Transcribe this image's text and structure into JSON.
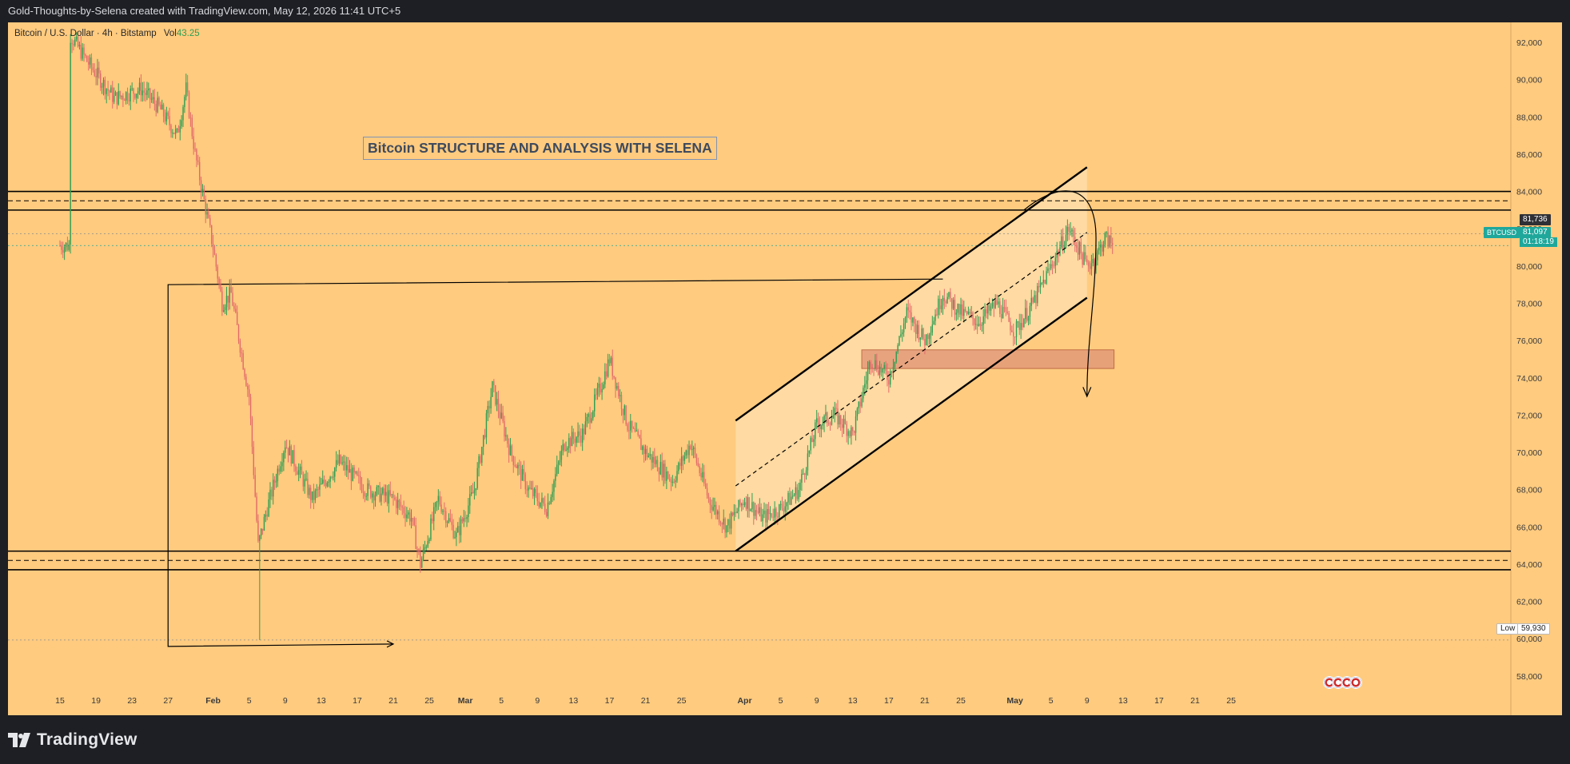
{
  "header": {
    "attribution": "Gold-Thoughts-by-Selena created with TradingView.com, May 12, 2026 11:41 UTC+5"
  },
  "legend": {
    "symbol": "Bitcoin / U.S. Dollar · 4h · Bitstamp",
    "vol_label": "Vol",
    "vol_value": "43.25"
  },
  "annotation_title": "Bitcoin STRUCTURE AND ANALYSIS WITH SELENA",
  "price_labels": {
    "high_marker": "81,736",
    "ticker": "BTCUSD",
    "current_price": "81,097",
    "countdown": "01:18:19",
    "low_label": "Low",
    "low_value": "59,930"
  },
  "footer": {
    "brand": "TradingView"
  },
  "colors": {
    "background": "#ffcb7f",
    "up_candle": "#2e9e52",
    "down_candle": "#e26a6a",
    "channel_fill": "#ffdba6",
    "demand_zone": "#e39a78",
    "lines": "#000000",
    "current_price": "#1fa79b"
  },
  "chart_data": {
    "type": "candlestick",
    "symbol": "BTCUSD",
    "timeframe": "4h",
    "exchange": "Bitstamp",
    "x_tick_labels": [
      "15",
      "19",
      "23",
      "27",
      "Feb",
      "5",
      "9",
      "13",
      "17",
      "21",
      "25",
      "Mar",
      "5",
      "9",
      "13",
      "17",
      "21",
      "25",
      "Apr",
      "5",
      "9",
      "13",
      "17",
      "21",
      "25",
      "May",
      "5",
      "9",
      "13",
      "17",
      "21",
      "25"
    ],
    "y_tick_labels": [
      "92,000",
      "90,000",
      "88,000",
      "86,000",
      "84,000",
      "82,000",
      "80,000",
      "78,000",
      "76,000",
      "74,000",
      "72,000",
      "70,000",
      "68,000",
      "66,000",
      "64,000",
      "62,000",
      "60,000",
      "58,000"
    ],
    "ylim": [
      57000,
      92600
    ],
    "price_path": [
      [
        "Jan 16",
        92500
      ],
      [
        "Jan 18",
        91000
      ],
      [
        "Jan 21",
        89000
      ],
      [
        "Jan 24",
        89500
      ],
      [
        "Jan 26",
        88500
      ],
      [
        "Jan 28",
        87000
      ],
      [
        "Jan 29",
        89500
      ],
      [
        "Jan 30",
        86000
      ],
      [
        "Jan 31",
        83500
      ],
      [
        "Feb 1",
        81000
      ],
      [
        "Feb 2",
        78000
      ],
      [
        "Feb 3",
        78500
      ],
      [
        "Feb 5",
        73000
      ],
      [
        "Feb 6",
        65000
      ],
      [
        "Feb 7",
        67000
      ],
      [
        "Feb 9",
        70500
      ],
      [
        "Feb 12",
        67500
      ],
      [
        "Feb 15",
        69500
      ],
      [
        "Feb 18",
        68000
      ],
      [
        "Feb 21",
        67500
      ],
      [
        "Feb 23",
        66500
      ],
      [
        "Feb 24",
        64000
      ],
      [
        "Feb 26",
        67500
      ],
      [
        "Feb 28",
        65500
      ],
      [
        "Mar 2",
        68000
      ],
      [
        "Mar 4",
        73500
      ],
      [
        "Mar 6",
        70000
      ],
      [
        "Mar 8",
        68000
      ],
      [
        "Mar 10",
        67000
      ],
      [
        "Mar 12",
        70500
      ],
      [
        "Mar 14",
        71000
      ],
      [
        "Mar 16",
        73500
      ],
      [
        "Mar 17",
        75000
      ],
      [
        "Mar 19",
        71500
      ],
      [
        "Mar 21",
        70000
      ],
      [
        "Mar 24",
        68500
      ],
      [
        "Mar 26",
        70500
      ],
      [
        "Mar 28",
        67500
      ],
      [
        "Mar 30",
        66000
      ],
      [
        "Apr 1",
        67500
      ],
      [
        "Apr 3",
        66500
      ],
      [
        "Apr 5",
        67000
      ],
      [
        "Apr 7",
        68000
      ],
      [
        "Apr 9",
        71500
      ],
      [
        "Apr 11",
        72000
      ],
      [
        "Apr 13",
        71000
      ],
      [
        "Apr 15",
        75000
      ],
      [
        "Apr 17",
        74000
      ],
      [
        "Apr 19",
        77500
      ],
      [
        "Apr 21",
        76000
      ],
      [
        "Apr 23",
        78500
      ],
      [
        "Apr 25",
        77500
      ],
      [
        "Apr 27",
        77000
      ],
      [
        "Apr 29",
        78000
      ],
      [
        "May 1",
        76500
      ],
      [
        "May 3",
        78000
      ],
      [
        "May 5",
        80000
      ],
      [
        "May 7",
        82000
      ],
      [
        "May 8",
        81000
      ],
      [
        "May 9",
        80000
      ],
      [
        "May 10",
        80500
      ],
      [
        "May 11",
        81500
      ],
      [
        "May 12",
        81097
      ]
    ],
    "extremes": {
      "high": 92500,
      "low": 59930
    },
    "last_price": 81097,
    "high_marker": 81736,
    "resistance_zone": [
      83000,
      84000
    ],
    "resistance_mid": 83500,
    "support_zone": [
      63700,
      64700
    ],
    "support_mid": 64200,
    "ascending_channel": {
      "lower": [
        [
          "Mar 31",
          64700
        ],
        [
          "May 9",
          78300
        ]
      ],
      "upper": [
        [
          "Mar 31",
          71700
        ],
        [
          "May 9",
          85300
        ]
      ],
      "midline": [
        [
          "Mar 31",
          68200
        ],
        [
          "May 9",
          81800
        ]
      ]
    },
    "demand_zone": {
      "x": [
        "Apr 14",
        "May 12"
      ],
      "y": [
        74500,
        75500
      ]
    },
    "range_box_line": [
      [
        "Jan 27",
        79000
      ],
      [
        "Apr 23",
        79300
      ]
    ],
    "projection_arrow": "from May 7 ~83500 curving down to ~73000"
  }
}
